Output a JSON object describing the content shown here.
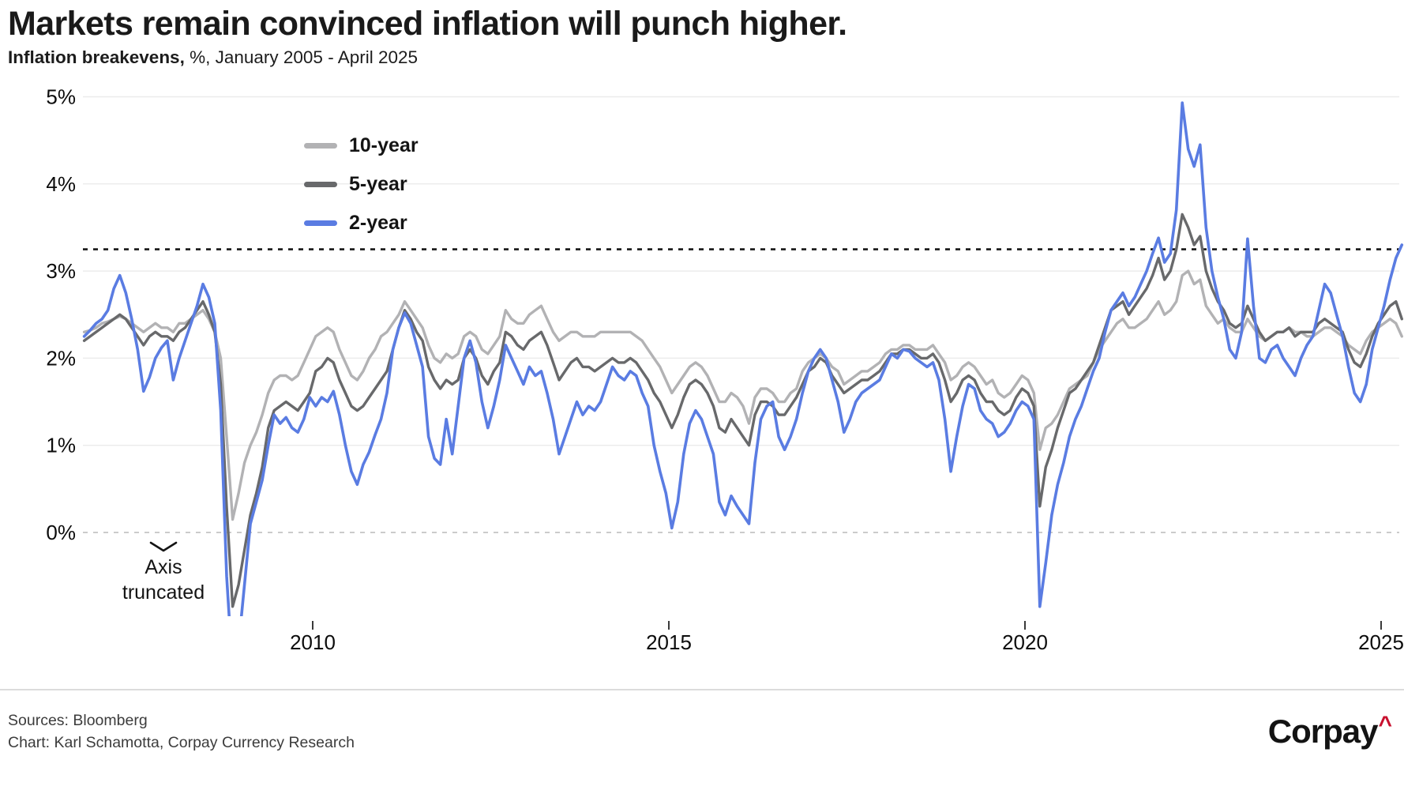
{
  "header": {
    "title": "Markets remain convinced inflation will punch higher.",
    "subtitle_bold": "Inflation breakevens,",
    "subtitle_rest": " %, January 2005 - April 2025"
  },
  "annotation": {
    "line1": "Axis",
    "line2": "truncated"
  },
  "footer": {
    "sources": "Sources: Bloomberg",
    "credit": "Chart: Karl Schamotta, Corpay Currency Research",
    "logo_text": "Corpay",
    "logo_caret": "^",
    "logo_caret_color": "#C8102E"
  },
  "chart_data": {
    "type": "line",
    "title": "Markets remain convinced inflation will punch higher.",
    "subtitle": "Inflation breakevens, %, January 2005 - April 2025",
    "legend_position": "top-left-inside",
    "grid": "horizontal",
    "y_axis_truncated": true,
    "ref_line": {
      "value": 3.25,
      "style": "dotted",
      "color": "#161616"
    },
    "zero_line": {
      "value": 0,
      "style": "dashed",
      "color": "#c4c4c4"
    },
    "y_ticks": [
      {
        "value": 5,
        "label": "5%"
      },
      {
        "value": 4,
        "label": "4%"
      },
      {
        "value": 3,
        "label": "3%"
      },
      {
        "value": 2,
        "label": "2%"
      },
      {
        "value": 1,
        "label": "1%"
      },
      {
        "value": 0,
        "label": "0%"
      }
    ],
    "x_ticks": [
      {
        "value": 2010,
        "label": "2010"
      },
      {
        "value": 2015,
        "label": "2015"
      },
      {
        "value": 2020,
        "label": "2020"
      },
      {
        "value": 2025,
        "label": "2025"
      }
    ],
    "x_visible_range": [
      2006.79,
      2025.3
    ],
    "x_start": 2006.792,
    "x_step": 0.083333,
    "series": [
      {
        "label": "10-year",
        "color": "#b2b2b4",
        "values": [
          2.3,
          2.32,
          2.35,
          2.4,
          2.42,
          2.45,
          2.48,
          2.45,
          2.4,
          2.35,
          2.3,
          2.35,
          2.4,
          2.35,
          2.35,
          2.3,
          2.4,
          2.4,
          2.45,
          2.5,
          2.55,
          2.45,
          2.3,
          2.0,
          1.1,
          0.15,
          0.45,
          0.8,
          1.0,
          1.15,
          1.35,
          1.6,
          1.75,
          1.8,
          1.8,
          1.75,
          1.8,
          1.95,
          2.1,
          2.25,
          2.3,
          2.35,
          2.3,
          2.1,
          1.95,
          1.8,
          1.75,
          1.85,
          2.0,
          2.1,
          2.25,
          2.3,
          2.4,
          2.5,
          2.65,
          2.55,
          2.45,
          2.35,
          2.15,
          2.0,
          1.95,
          2.05,
          2.0,
          2.05,
          2.25,
          2.3,
          2.25,
          2.1,
          2.05,
          2.15,
          2.25,
          2.55,
          2.45,
          2.4,
          2.4,
          2.5,
          2.55,
          2.6,
          2.45,
          2.3,
          2.2,
          2.25,
          2.3,
          2.3,
          2.25,
          2.25,
          2.25,
          2.3,
          2.3,
          2.3,
          2.3,
          2.3,
          2.3,
          2.25,
          2.2,
          2.1,
          2.0,
          1.9,
          1.75,
          1.6,
          1.7,
          1.8,
          1.9,
          1.95,
          1.9,
          1.8,
          1.65,
          1.5,
          1.5,
          1.6,
          1.55,
          1.45,
          1.25,
          1.55,
          1.65,
          1.65,
          1.6,
          1.5,
          1.5,
          1.6,
          1.65,
          1.85,
          1.95,
          2.0,
          2.05,
          2.0,
          1.9,
          1.85,
          1.7,
          1.75,
          1.8,
          1.85,
          1.85,
          1.9,
          1.95,
          2.05,
          2.1,
          2.1,
          2.15,
          2.15,
          2.1,
          2.1,
          2.1,
          2.15,
          2.05,
          1.95,
          1.75,
          1.8,
          1.9,
          1.95,
          1.9,
          1.8,
          1.7,
          1.75,
          1.6,
          1.55,
          1.6,
          1.7,
          1.8,
          1.75,
          1.6,
          0.95,
          1.2,
          1.25,
          1.35,
          1.5,
          1.65,
          1.7,
          1.75,
          1.8,
          1.95,
          2.1,
          2.2,
          2.3,
          2.4,
          2.45,
          2.35,
          2.35,
          2.4,
          2.45,
          2.55,
          2.65,
          2.5,
          2.55,
          2.65,
          2.95,
          3.0,
          2.85,
          2.9,
          2.6,
          2.5,
          2.4,
          2.45,
          2.35,
          2.3,
          2.3,
          2.45,
          2.35,
          2.25,
          2.2,
          2.25,
          2.3,
          2.3,
          2.35,
          2.3,
          2.3,
          2.25,
          2.25,
          2.3,
          2.35,
          2.35,
          2.3,
          2.25,
          2.15,
          2.1,
          2.05,
          2.2,
          2.3,
          2.35,
          2.4,
          2.45,
          2.4,
          2.25
        ]
      },
      {
        "label": "5-year",
        "color": "#68696b",
        "values": [
          2.2,
          2.25,
          2.3,
          2.35,
          2.4,
          2.45,
          2.5,
          2.45,
          2.35,
          2.25,
          2.15,
          2.25,
          2.3,
          2.25,
          2.25,
          2.2,
          2.3,
          2.35,
          2.45,
          2.55,
          2.65,
          2.5,
          2.3,
          1.7,
          0.3,
          -0.85,
          -0.6,
          -0.2,
          0.2,
          0.45,
          0.75,
          1.2,
          1.4,
          1.45,
          1.5,
          1.45,
          1.4,
          1.5,
          1.6,
          1.85,
          1.9,
          2.0,
          1.95,
          1.75,
          1.6,
          1.45,
          1.4,
          1.45,
          1.55,
          1.65,
          1.75,
          1.85,
          2.1,
          2.35,
          2.55,
          2.45,
          2.3,
          2.2,
          1.9,
          1.75,
          1.65,
          1.75,
          1.7,
          1.75,
          2.0,
          2.1,
          2.0,
          1.8,
          1.7,
          1.85,
          1.95,
          2.3,
          2.25,
          2.15,
          2.1,
          2.2,
          2.25,
          2.3,
          2.15,
          1.95,
          1.75,
          1.85,
          1.95,
          2.0,
          1.9,
          1.9,
          1.85,
          1.9,
          1.95,
          2.0,
          1.95,
          1.95,
          2.0,
          1.95,
          1.85,
          1.75,
          1.6,
          1.5,
          1.35,
          1.2,
          1.35,
          1.55,
          1.7,
          1.75,
          1.7,
          1.6,
          1.45,
          1.2,
          1.15,
          1.3,
          1.2,
          1.1,
          1.0,
          1.35,
          1.5,
          1.5,
          1.45,
          1.35,
          1.35,
          1.45,
          1.55,
          1.7,
          1.85,
          1.9,
          2.0,
          1.95,
          1.8,
          1.7,
          1.6,
          1.65,
          1.7,
          1.75,
          1.75,
          1.8,
          1.85,
          1.95,
          2.05,
          2.05,
          2.1,
          2.1,
          2.05,
          2.0,
          2.0,
          2.05,
          1.95,
          1.75,
          1.5,
          1.6,
          1.75,
          1.8,
          1.75,
          1.6,
          1.5,
          1.5,
          1.4,
          1.35,
          1.4,
          1.55,
          1.65,
          1.6,
          1.45,
          0.3,
          0.75,
          0.95,
          1.2,
          1.4,
          1.6,
          1.65,
          1.75,
          1.85,
          1.95,
          2.15,
          2.35,
          2.55,
          2.6,
          2.65,
          2.5,
          2.6,
          2.7,
          2.8,
          2.95,
          3.15,
          2.9,
          3.0,
          3.25,
          3.65,
          3.5,
          3.3,
          3.4,
          3.0,
          2.8,
          2.65,
          2.55,
          2.4,
          2.35,
          2.4,
          2.6,
          2.45,
          2.3,
          2.2,
          2.25,
          2.3,
          2.3,
          2.35,
          2.25,
          2.3,
          2.3,
          2.3,
          2.4,
          2.45,
          2.4,
          2.35,
          2.3,
          2.1,
          1.95,
          1.9,
          2.05,
          2.25,
          2.4,
          2.5,
          2.6,
          2.65,
          2.45
        ]
      },
      {
        "label": "2-year",
        "color": "#5a7ce2",
        "values": [
          2.25,
          2.32,
          2.4,
          2.45,
          2.55,
          2.8,
          2.95,
          2.75,
          2.45,
          2.1,
          1.62,
          1.78,
          2.0,
          2.12,
          2.2,
          1.75,
          2.0,
          2.2,
          2.4,
          2.6,
          2.85,
          2.7,
          2.4,
          1.4,
          -0.5,
          -1.6,
          -1.3,
          -0.6,
          0.1,
          0.35,
          0.6,
          1.0,
          1.35,
          1.25,
          1.32,
          1.2,
          1.15,
          1.3,
          1.55,
          1.45,
          1.55,
          1.5,
          1.62,
          1.35,
          1.0,
          0.7,
          0.55,
          0.78,
          0.92,
          1.12,
          1.3,
          1.6,
          2.1,
          2.35,
          2.52,
          2.4,
          2.15,
          1.9,
          1.1,
          0.85,
          0.78,
          1.3,
          0.9,
          1.45,
          2.0,
          2.2,
          1.95,
          1.5,
          1.2,
          1.45,
          1.75,
          2.15,
          2.0,
          1.85,
          1.7,
          1.9,
          1.8,
          1.85,
          1.6,
          1.3,
          0.9,
          1.1,
          1.3,
          1.5,
          1.35,
          1.45,
          1.4,
          1.5,
          1.7,
          1.9,
          1.8,
          1.75,
          1.85,
          1.8,
          1.6,
          1.45,
          1.0,
          0.7,
          0.45,
          0.05,
          0.35,
          0.9,
          1.25,
          1.4,
          1.3,
          1.1,
          0.9,
          0.35,
          0.2,
          0.42,
          0.3,
          0.2,
          0.1,
          0.8,
          1.3,
          1.45,
          1.5,
          1.1,
          0.95,
          1.1,
          1.3,
          1.6,
          1.85,
          2.0,
          2.1,
          2.0,
          1.75,
          1.5,
          1.15,
          1.3,
          1.5,
          1.6,
          1.65,
          1.7,
          1.75,
          1.9,
          2.05,
          2.0,
          2.1,
          2.08,
          2.0,
          1.95,
          1.9,
          1.95,
          1.75,
          1.3,
          0.7,
          1.1,
          1.45,
          1.7,
          1.65,
          1.4,
          1.3,
          1.25,
          1.1,
          1.15,
          1.25,
          1.4,
          1.5,
          1.45,
          1.3,
          -0.85,
          -0.35,
          0.2,
          0.55,
          0.8,
          1.1,
          1.3,
          1.45,
          1.65,
          1.85,
          2.0,
          2.3,
          2.55,
          2.65,
          2.75,
          2.6,
          2.7,
          2.85,
          3.0,
          3.2,
          3.38,
          3.1,
          3.2,
          3.7,
          4.93,
          4.4,
          4.2,
          4.45,
          3.5,
          3.0,
          2.7,
          2.45,
          2.1,
          2.0,
          2.3,
          3.37,
          2.6,
          2.0,
          1.95,
          2.1,
          2.15,
          2.0,
          1.9,
          1.8,
          2.0,
          2.15,
          2.25,
          2.55,
          2.85,
          2.75,
          2.5,
          2.25,
          1.9,
          1.6,
          1.5,
          1.7,
          2.1,
          2.35,
          2.6,
          2.9,
          3.15,
          3.3
        ]
      }
    ]
  }
}
